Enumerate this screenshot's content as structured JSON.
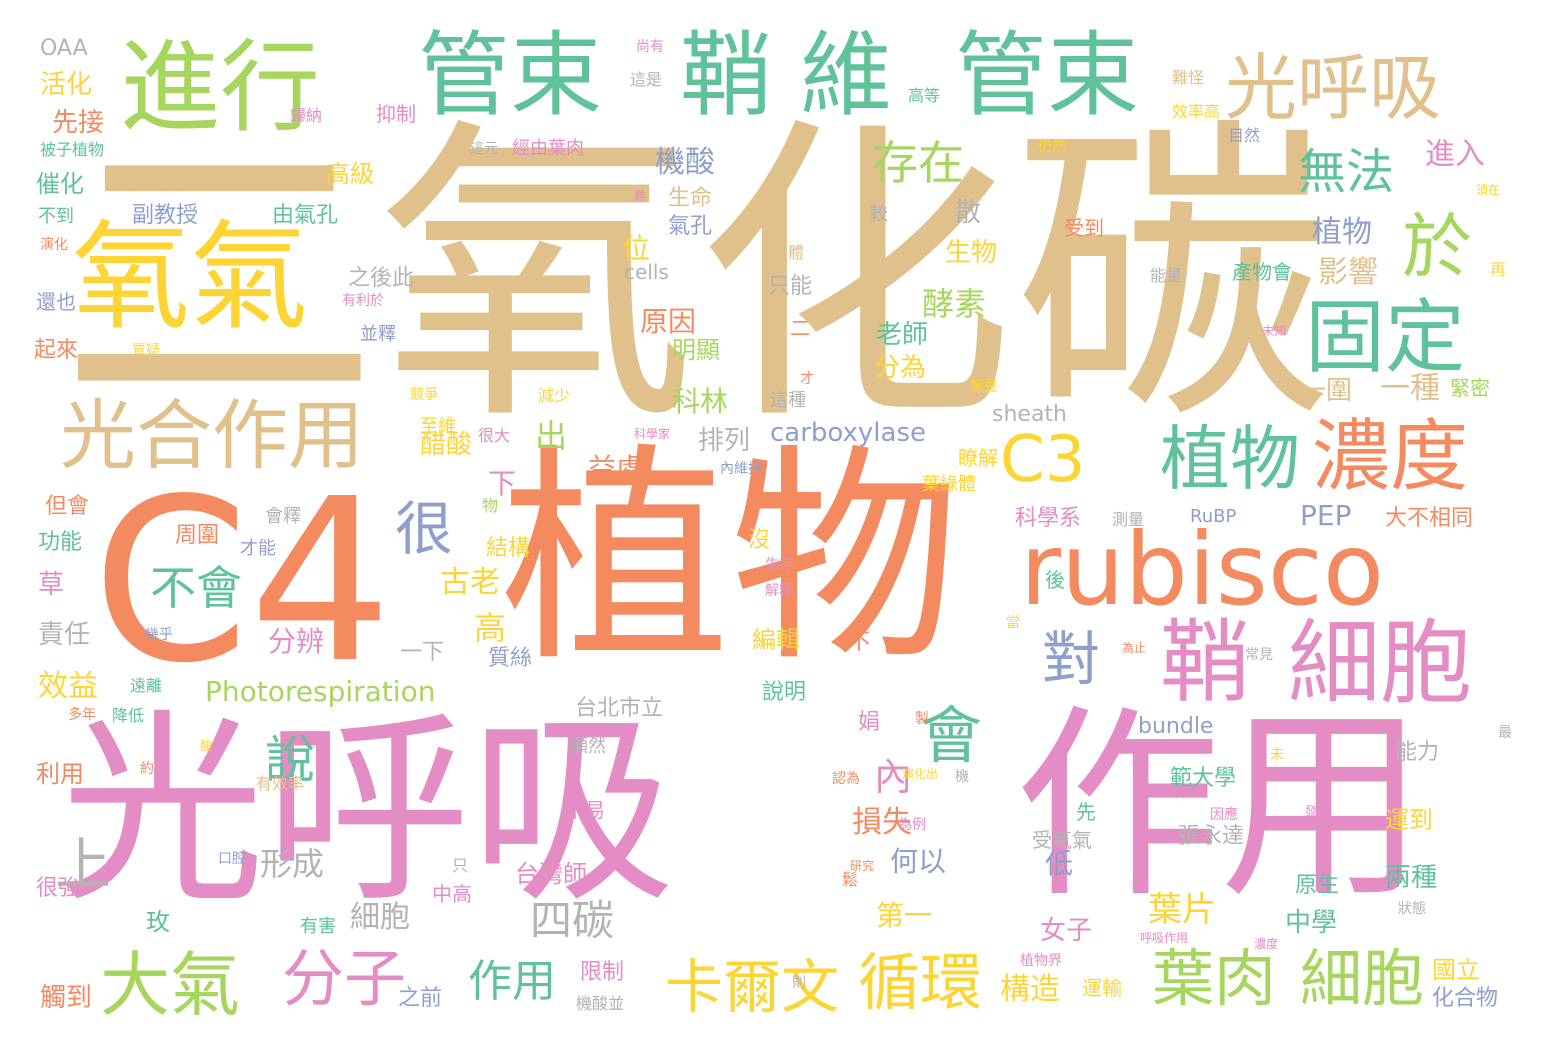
{
  "palette": [
    "#e0c18c",
    "#f48b60",
    "#e48cc4",
    "#5fc29a",
    "#fcd535",
    "#8e9fcb",
    "#a6d65e",
    "#b3b3b3"
  ],
  "words": [
    {
      "text": "二氧化碳",
      "color": "#e0c18c"
    },
    {
      "text": "C4",
      "color": "#f48b60"
    },
    {
      "text": "植物",
      "color": "#f48b60"
    },
    {
      "text": "光呼吸",
      "color": "#e48cc4"
    },
    {
      "text": "作用",
      "color": "#e48cc4"
    },
    {
      "text": "rubisco",
      "color": "#f48b60"
    },
    {
      "text": "氧氣",
      "color": "#fcd535"
    },
    {
      "text": "進行",
      "color": "#a6d65e"
    },
    {
      "text": "管束",
      "color": "#5fc29a"
    },
    {
      "text": "鞘",
      "color": "#5fc29a"
    },
    {
      "text": "維",
      "color": "#5fc29a"
    },
    {
      "text": "管束",
      "color": "#5fc29a"
    },
    {
      "text": "光呼吸",
      "color": "#e0c18c"
    },
    {
      "text": "固定",
      "color": "#5fc29a"
    },
    {
      "text": "於",
      "color": "#a6d65e"
    },
    {
      "text": "光合作用",
      "color": "#e0c18c"
    },
    {
      "text": "C3",
      "color": "#fcd535"
    },
    {
      "text": "植物",
      "color": "#5fc29a"
    },
    {
      "text": "濃度",
      "color": "#f48b60"
    },
    {
      "text": "鞘",
      "color": "#e48cc4"
    },
    {
      "text": "細胞",
      "color": "#e48cc4"
    },
    {
      "text": "大氣",
      "color": "#a6d65e"
    },
    {
      "text": "分子",
      "color": "#e48cc4"
    },
    {
      "text": "卡爾文",
      "color": "#fcd535"
    },
    {
      "text": "循環",
      "color": "#fcd535"
    },
    {
      "text": "葉肉",
      "color": "#a6d65e"
    },
    {
      "text": "細胞",
      "color": "#a6d65e"
    },
    {
      "text": "會",
      "color": "#5fc29a"
    },
    {
      "text": "對",
      "color": "#8e9fcb"
    },
    {
      "text": "存在",
      "color": "#a6d65e"
    },
    {
      "text": "無法",
      "color": "#5fc29a"
    },
    {
      "text": "很",
      "color": "#8e9fcb"
    },
    {
      "text": "不會",
      "color": "#5fc29a"
    },
    {
      "text": "說",
      "color": "#5fc29a"
    },
    {
      "text": "四碳",
      "color": "#b3b3b3"
    },
    {
      "text": "作用",
      "color": "#5fc29a"
    },
    {
      "text": "Photorespiration",
      "color": "#a6d65e"
    },
    {
      "text": "carboxylase",
      "color": "#8e9fcb"
    },
    {
      "text": "機酸",
      "color": "#8e9fcb"
    },
    {
      "text": "植物",
      "color": "#8e9fcb"
    },
    {
      "text": "影響",
      "color": "#e0c18c"
    },
    {
      "text": "酵素",
      "color": "#a6d65e"
    },
    {
      "text": "進入",
      "color": "#e48cc4"
    },
    {
      "text": "一圍",
      "color": "#e0c18c"
    },
    {
      "text": "一種",
      "color": "#e0c18c"
    },
    {
      "text": "上",
      "color": "#b3b3b3"
    },
    {
      "text": "形成",
      "color": "#b3b3b3"
    },
    {
      "text": "細胞",
      "color": "#b3b3b3"
    },
    {
      "text": "古老",
      "color": "#fcd535"
    },
    {
      "text": "分辨",
      "color": "#e48cc4"
    },
    {
      "text": "高",
      "color": "#fcd535"
    },
    {
      "text": "效益",
      "color": "#fcd535"
    },
    {
      "text": "責任",
      "color": "#b3b3b3"
    },
    {
      "text": "益處",
      "color": "#f48b60"
    },
    {
      "text": "醋酸",
      "color": "#fcd535"
    },
    {
      "text": "排列",
      "color": "#b3b3b3"
    },
    {
      "text": "出",
      "color": "#a6d65e"
    },
    {
      "text": "位",
      "color": "#fcd535"
    },
    {
      "text": "原因",
      "color": "#f48b60"
    },
    {
      "text": "科林",
      "color": "#a6d65e"
    },
    {
      "text": "明顯",
      "color": "#a6d65e"
    },
    {
      "text": "老師",
      "color": "#5fc29a"
    },
    {
      "text": "分為",
      "color": "#fcd535"
    },
    {
      "text": "生物",
      "color": "#fcd535"
    },
    {
      "text": "散",
      "color": "#b3b3b3"
    },
    {
      "text": "生命",
      "color": "#e0c18c"
    },
    {
      "text": "氣孔",
      "color": "#8e9fcb"
    },
    {
      "text": "內",
      "color": "#e48cc4"
    },
    {
      "text": "損失",
      "color": "#f48b60"
    },
    {
      "text": "何以",
      "color": "#8e9fcb"
    },
    {
      "text": "低",
      "color": "#8e9fcb"
    },
    {
      "text": "第一",
      "color": "#fcd535"
    },
    {
      "text": "構造",
      "color": "#fcd535"
    },
    {
      "text": "PEP",
      "color": "#8e9fcb"
    },
    {
      "text": "大不相同",
      "color": "#f48b60"
    },
    {
      "text": "科學系",
      "color": "#e48cc4"
    },
    {
      "text": "女子",
      "color": "#e48cc4"
    },
    {
      "text": "中學",
      "color": "#5fc29a"
    },
    {
      "text": "葉片",
      "color": "#fcd535"
    },
    {
      "text": "張永達",
      "color": "#b3b3b3"
    },
    {
      "text": "範大學",
      "color": "#5fc29a"
    },
    {
      "text": "台灣師",
      "color": "#e48cc4"
    },
    {
      "text": "國立",
      "color": "#fcd535"
    },
    {
      "text": "化合物",
      "color": "#8e9fcb"
    },
    {
      "text": "兩種",
      "color": "#5fc29a"
    },
    {
      "text": "原生",
      "color": "#5fc29a"
    },
    {
      "text": "運到",
      "color": "#fcd535"
    },
    {
      "text": "能力",
      "color": "#b3b3b3"
    },
    {
      "text": "bundle",
      "color": "#8e9fcb"
    },
    {
      "text": "sheath",
      "color": "#b3b3b3"
    },
    {
      "text": "cells",
      "color": "#b3b3b3"
    },
    {
      "text": "RuBP",
      "color": "#8e9fcb"
    },
    {
      "text": "台北市立",
      "color": "#b3b3b3"
    },
    {
      "text": "說明",
      "color": "#5fc29a"
    },
    {
      "text": "編輯",
      "color": "#fcd535"
    },
    {
      "text": "沒",
      "color": "#fcd535"
    },
    {
      "text": "下",
      "color": "#e48cc4"
    },
    {
      "text": "結構",
      "color": "#fcd535"
    },
    {
      "text": "質絲",
      "color": "#8e9fcb"
    },
    {
      "text": "一下",
      "color": "#b3b3b3"
    },
    {
      "text": "周圍",
      "color": "#f48b60"
    },
    {
      "text": "才能",
      "color": "#8e9fcb"
    },
    {
      "text": "會釋",
      "color": "#b3b3b3"
    },
    {
      "text": "功能",
      "color": "#5fc29a"
    },
    {
      "text": "但會",
      "color": "#f48b60"
    },
    {
      "text": "草",
      "color": "#e48cc4"
    },
    {
      "text": "利用",
      "color": "#f48b60"
    },
    {
      "text": "觸到",
      "color": "#f48b60"
    },
    {
      "text": "很強",
      "color": "#e48cc4"
    },
    {
      "text": "玫",
      "color": "#5fc29a"
    },
    {
      "text": "有害",
      "color": "#5fc29a"
    },
    {
      "text": "之前",
      "color": "#8e9fcb"
    },
    {
      "text": "限制",
      "color": "#e48cc4"
    },
    {
      "text": "機酸並",
      "color": "#b3b3b3"
    },
    {
      "text": "中高",
      "color": "#e48cc4"
    },
    {
      "text": "運輸",
      "color": "#fcd535"
    },
    {
      "text": "受氧氣",
      "color": "#b3b3b3"
    },
    {
      "text": "OAA",
      "color": "#b3b3b3"
    },
    {
      "text": "活化",
      "color": "#fcd535"
    },
    {
      "text": "先接",
      "color": "#f48b60"
    },
    {
      "text": "催化",
      "color": "#5fc29a"
    },
    {
      "text": "不到",
      "color": "#5fc29a"
    },
    {
      "text": "還也",
      "color": "#8e9fcb"
    },
    {
      "text": "起來",
      "color": "#f48b60"
    },
    {
      "text": "高級",
      "color": "#fcd535"
    },
    {
      "text": "副教授",
      "color": "#8e9fcb"
    },
    {
      "text": "由氣孔",
      "color": "#5fc29a"
    },
    {
      "text": "抑制",
      "color": "#e48cc4"
    },
    {
      "text": "歸納",
      "color": "#e48cc4"
    },
    {
      "text": "經由葉肉",
      "color": "#e48cc4"
    },
    {
      "text": "之後此",
      "color": "#b3b3b3"
    },
    {
      "text": "並釋",
      "color": "#8e9fcb"
    },
    {
      "text": "只能",
      "color": "#b3b3b3"
    },
    {
      "text": "二",
      "color": "#f48b60"
    },
    {
      "text": "至維",
      "color": "#fcd535"
    },
    {
      "text": "很大",
      "color": "#e48cc4"
    },
    {
      "text": "瞭解",
      "color": "#fcd535"
    },
    {
      "text": "葉綠體",
      "color": "#fcd535"
    },
    {
      "text": "測量",
      "color": "#b3b3b3"
    },
    {
      "text": "後",
      "color": "#5fc29a"
    },
    {
      "text": "受到",
      "color": "#f48b60"
    },
    {
      "text": "產物會",
      "color": "#5fc29a"
    },
    {
      "text": "緊密",
      "color": "#a6d65e"
    },
    {
      "text": "再",
      "color": "#fcd535"
    },
    {
      "text": "先",
      "color": "#5fc29a"
    },
    {
      "text": "不易",
      "color": "#e48cc4"
    },
    {
      "text": "遠離",
      "color": "#5fc29a"
    },
    {
      "text": "降低",
      "color": "#5fc29a"
    },
    {
      "text": "有效率",
      "color": "#e0c18c"
    },
    {
      "text": "顯然",
      "color": "#b3b3b3"
    },
    {
      "text": "能量",
      "color": "#b3b3b3"
    },
    {
      "text": "整體",
      "color": "#e0c18c"
    },
    {
      "text": "減少",
      "color": "#fcd535"
    },
    {
      "text": "這種",
      "color": "#b3b3b3"
    },
    {
      "text": "較",
      "color": "#b3b3b3"
    },
    {
      "text": "目然",
      "color": "#8e9fcb"
    },
    {
      "text": "高等",
      "color": "#5fc29a"
    },
    {
      "text": "效率高",
      "color": "#fcd535"
    },
    {
      "text": "難怪",
      "color": "#e0c18c"
    },
    {
      "text": "這是",
      "color": "#b3b3b3"
    },
    {
      "text": "尚有",
      "color": "#e48cc4"
    },
    {
      "text": "這元",
      "color": "#b3b3b3"
    },
    {
      "text": "仍然",
      "color": "#fcd535"
    },
    {
      "text": "被子植物",
      "color": "#5fc29a"
    },
    {
      "text": "演化",
      "color": "#f48b60"
    },
    {
      "text": "有利於",
      "color": "#e48cc4"
    },
    {
      "text": "質疑",
      "color": "#fcd535"
    },
    {
      "text": "競爭",
      "color": "#fcd535"
    },
    {
      "text": "才",
      "color": "#f48b60"
    },
    {
      "text": "內維持",
      "color": "#8e9fcb"
    },
    {
      "text": "科學家",
      "color": "#e48cc4"
    },
    {
      "text": "豌豆",
      "color": "#fcd535"
    },
    {
      "text": "未知",
      "color": "#e48cc4"
    },
    {
      "text": "演化出",
      "color": "#fcd535"
    },
    {
      "text": "呼吸作用",
      "color": "#e48cc4"
    },
    {
      "text": "狀態",
      "color": "#b3b3b3"
    },
    {
      "text": "植物界",
      "color": "#e48cc4"
    },
    {
      "text": "常見",
      "color": "#b3b3b3"
    },
    {
      "text": "為止",
      "color": "#f48b60"
    },
    {
      "text": "幾乎",
      "color": "#8e9fcb"
    },
    {
      "text": "多年",
      "color": "#f48b60"
    },
    {
      "text": "約",
      "color": "#f48b60"
    },
    {
      "text": "最",
      "color": "#b3b3b3"
    },
    {
      "text": "因應",
      "color": "#e48cc4"
    },
    {
      "text": "發現",
      "color": "#e48cc4"
    },
    {
      "text": "為例",
      "color": "#e48cc4"
    },
    {
      "text": "研究",
      "color": "#f48b60"
    },
    {
      "text": "口腔",
      "color": "#8e9fcb"
    },
    {
      "text": "製",
      "color": "#f48b60"
    },
    {
      "text": "娟",
      "color": "#e48cc4"
    },
    {
      "text": "不",
      "color": "#f48b60"
    },
    {
      "text": "生存",
      "color": "#e48cc4"
    },
    {
      "text": "解釋",
      "color": "#e48cc4"
    },
    {
      "text": "物",
      "color": "#a6d65e"
    },
    {
      "text": "當",
      "color": "#fcd535"
    },
    {
      "text": "濃度",
      "color": "#e48cc4"
    },
    {
      "text": "認為",
      "color": "#f48b60"
    },
    {
      "text": "機",
      "color": "#b3b3b3"
    },
    {
      "text": "只",
      "color": "#b3b3b3"
    },
    {
      "text": "難",
      "color": "#e48cc4"
    },
    {
      "text": "須在",
      "color": "#fcd535"
    },
    {
      "text": "未",
      "color": "#fcd535"
    },
    {
      "text": "則",
      "color": "#b3b3b3"
    },
    {
      "text": "鬆",
      "color": "#f48b60"
    },
    {
      "text": "酸",
      "color": "#fcd535"
    }
  ]
}
